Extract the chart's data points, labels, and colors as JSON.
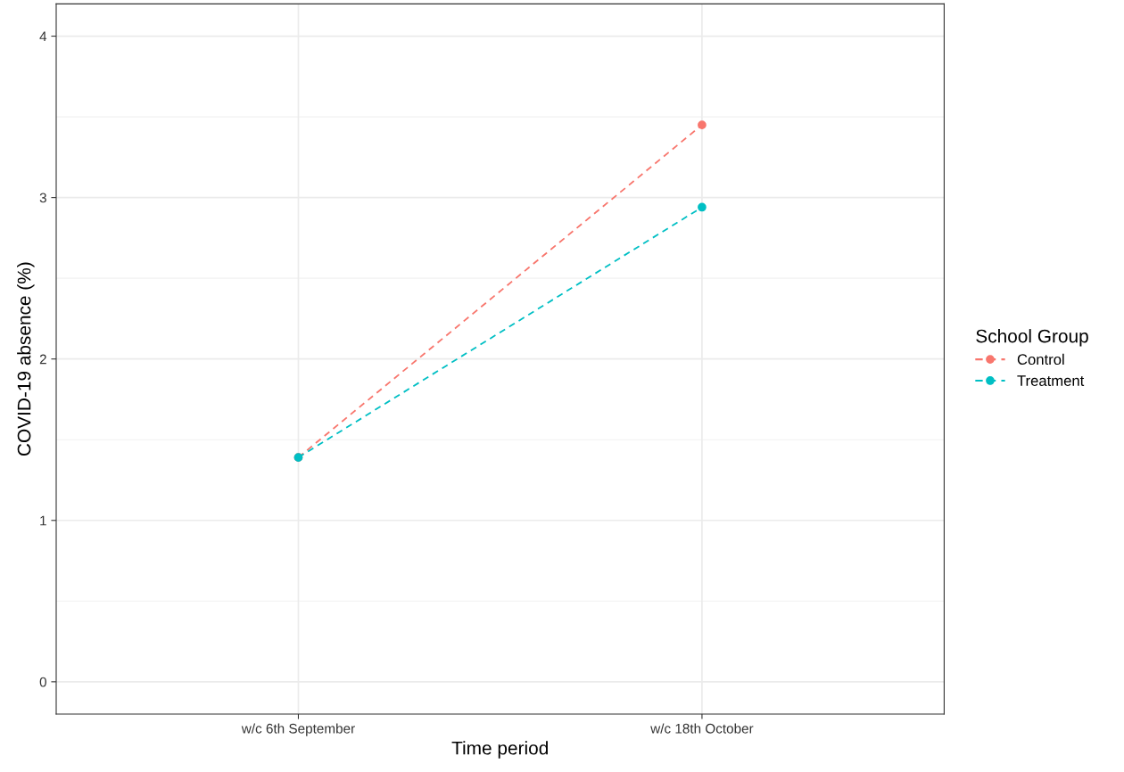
{
  "chart_data": {
    "type": "line",
    "xlabel": "Time period",
    "ylabel": "COVID-19 absence (%)",
    "legend_title": "School Group",
    "categories": [
      "w/c 6th September",
      "w/c 18th October"
    ],
    "series": [
      {
        "name": "Control",
        "color": "#f8766d",
        "values": [
          1.39,
          3.45
        ]
      },
      {
        "name": "Treatment",
        "color": "#00bfc4",
        "values": [
          1.39,
          2.94
        ]
      }
    ],
    "ylim": [
      -0.2,
      4.2
    ],
    "yticks": [
      0,
      1,
      2,
      3,
      4
    ],
    "grid": true,
    "legend": "right",
    "marker": "circle",
    "line_style": "dashed"
  }
}
